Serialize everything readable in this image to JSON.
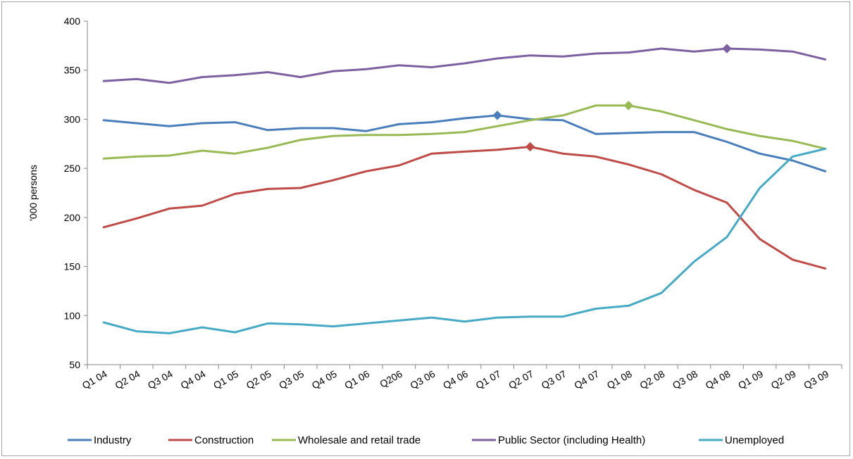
{
  "chart_data": {
    "type": "line",
    "title": "",
    "xlabel": "",
    "ylabel": "'000 persons",
    "ylim": [
      50,
      400
    ],
    "yticks": [
      50,
      100,
      150,
      200,
      250,
      300,
      350,
      400
    ],
    "grid": false,
    "legend_position": "bottom",
    "categories": [
      "Q1 04",
      "Q2 04",
      "Q3 04",
      "Q4 04",
      "Q1 05",
      "Q2 05",
      "Q3 05",
      "Q4 05",
      "Q1 06",
      "Q206",
      "Q3 06",
      "Q4 06",
      "Q1 07",
      "Q2 07",
      "Q3 07",
      "Q4 07",
      "Q1 08",
      "Q2 08",
      "Q3 08",
      "Q4 08",
      "Q1 09",
      "Q2 09",
      "Q3 09"
    ],
    "series": [
      {
        "name": "Industry",
        "color": "#4a7ebb",
        "values": [
          299,
          296,
          293,
          296,
          297,
          289,
          291,
          291,
          288,
          295,
          297,
          301,
          304,
          300,
          299,
          285,
          286,
          287,
          287,
          277,
          265,
          258,
          247
        ],
        "markers": [
          {
            "x": "Q1 07",
            "y": 304
          }
        ]
      },
      {
        "name": "Construction",
        "color": "#be4b48",
        "values": [
          190,
          199,
          209,
          212,
          224,
          229,
          230,
          238,
          247,
          253,
          265,
          267,
          269,
          272,
          265,
          262,
          254,
          244,
          228,
          215,
          178,
          157,
          148
        ],
        "markers": [
          {
            "x": "Q2 07",
            "y": 272
          }
        ]
      },
      {
        "name": "Wholesale and retail trade",
        "color": "#98b954",
        "values": [
          260,
          262,
          263,
          268,
          265,
          271,
          279,
          283,
          284,
          284,
          285,
          287,
          293,
          299,
          304,
          314,
          314,
          308,
          299,
          290,
          283,
          278,
          270
        ],
        "markers": [
          {
            "x": "Q1 08",
            "y": 314
          }
        ]
      },
      {
        "name": "Public Sector (including Health)",
        "color": "#7d60a0",
        "values": [
          339,
          341,
          337,
          343,
          345,
          348,
          343,
          349,
          351,
          355,
          353,
          357,
          362,
          365,
          364,
          367,
          368,
          372,
          369,
          372,
          371,
          369,
          361
        ],
        "markers": [
          {
            "x": "Q4 08",
            "y": 372
          }
        ]
      },
      {
        "name": "Unemployed",
        "color": "#46aac5",
        "values": [
          93,
          84,
          82,
          88,
          83,
          92,
          91,
          89,
          92,
          95,
          98,
          94,
          98,
          99,
          99,
          107,
          110,
          123,
          155,
          180,
          230,
          262,
          270
        ],
        "markers": []
      }
    ]
  }
}
